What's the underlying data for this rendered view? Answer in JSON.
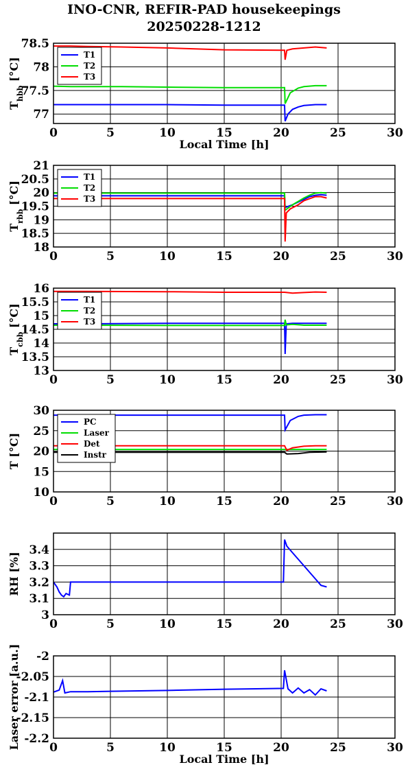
{
  "title": "INO-CNR, REFIR-PAD housekeepings",
  "subtitle": "20250228-1212",
  "colors": {
    "blue": "#0000ff",
    "green": "#00dd00",
    "red": "#ff0000",
    "black": "#000000"
  },
  "chart_data": [
    {
      "type": "line",
      "ylabel_main": "T",
      "ylabel_sub": "hbb",
      "ylabel_unit": " [°C]",
      "xlabel": "Local Time [h]",
      "xlim": [
        0,
        30
      ],
      "ylim": [
        76.8,
        78.5
      ],
      "xticks": [
        "0",
        "5",
        "10",
        "15",
        "20",
        "25",
        "30"
      ],
      "yticks": [
        "77",
        "77.5",
        "78",
        "78.5"
      ],
      "ytick_values": [
        77,
        77.5,
        78,
        78.5
      ],
      "grid": true,
      "legend_position": "top-left",
      "series": [
        {
          "name": "T1",
          "color": "#0000ff",
          "x": [
            0,
            1.5,
            3,
            6,
            10,
            15,
            20.3,
            20.35,
            20.6,
            21,
            21.5,
            22,
            23,
            24
          ],
          "y": [
            77.2,
            77.2,
            77.2,
            77.2,
            77.2,
            77.19,
            77.19,
            76.85,
            77.0,
            77.1,
            77.15,
            77.18,
            77.2,
            77.2
          ]
        },
        {
          "name": "T2",
          "color": "#00dd00",
          "x": [
            0,
            1.5,
            3,
            6,
            10,
            15,
            20.3,
            20.35,
            20.8,
            21.5,
            22,
            23,
            24
          ],
          "y": [
            77.59,
            77.58,
            77.58,
            77.58,
            77.57,
            77.56,
            77.56,
            77.22,
            77.45,
            77.55,
            77.58,
            77.6,
            77.6
          ]
        },
        {
          "name": "T3",
          "color": "#ff0000",
          "x": [
            0,
            1.5,
            3,
            6,
            10,
            15,
            20.3,
            20.35,
            20.5,
            21,
            22,
            23,
            24
          ],
          "y": [
            78.44,
            78.44,
            78.43,
            78.42,
            78.4,
            78.36,
            78.35,
            78.15,
            78.35,
            78.38,
            78.4,
            78.42,
            78.4
          ]
        }
      ]
    },
    {
      "type": "line",
      "ylabel_main": "T",
      "ylabel_sub": "rbb",
      "ylabel_unit": " [°C]",
      "xlabel": "",
      "xlim": [
        0,
        30
      ],
      "ylim": [
        18,
        21
      ],
      "xticks": [
        "0",
        "5",
        "10",
        "15",
        "20",
        "25",
        "30"
      ],
      "yticks": [
        "18",
        "18.5",
        "19",
        "19.5",
        "20",
        "20.5",
        "21"
      ],
      "ytick_values": [
        18,
        18.5,
        19,
        19.5,
        20,
        20.5,
        21
      ],
      "grid": true,
      "legend_position": "top-left",
      "series": [
        {
          "name": "T1",
          "color": "#0000ff",
          "x": [
            0,
            3,
            10,
            15,
            20.3,
            20.35,
            21,
            22,
            22.5,
            23,
            23.5,
            24
          ],
          "y": [
            19.88,
            19.88,
            19.88,
            19.88,
            19.88,
            19.45,
            19.55,
            19.75,
            19.85,
            19.9,
            19.92,
            19.9
          ]
        },
        {
          "name": "T2",
          "color": "#00dd00",
          "x": [
            0,
            3,
            10,
            15,
            20.3,
            20.35,
            21,
            22,
            22.5,
            23,
            23.5,
            24
          ],
          "y": [
            19.98,
            19.98,
            19.98,
            19.98,
            19.98,
            19.35,
            19.55,
            19.8,
            19.9,
            19.98,
            20.0,
            19.98
          ]
        },
        {
          "name": "T3",
          "color": "#ff0000",
          "x": [
            0,
            3,
            10,
            15,
            20.3,
            20.35,
            20.45,
            20.8,
            21.5,
            22,
            23,
            23.5,
            24
          ],
          "y": [
            19.78,
            19.78,
            19.78,
            19.78,
            19.78,
            18.2,
            19.25,
            19.4,
            19.55,
            19.7,
            19.85,
            19.85,
            19.8
          ]
        }
      ]
    },
    {
      "type": "line",
      "ylabel_main": "T",
      "ylabel_sub": "cbb",
      "ylabel_unit": " [°C]",
      "xlabel": "",
      "xlim": [
        0,
        30
      ],
      "ylim": [
        13,
        16
      ],
      "xticks": [
        "0",
        "5",
        "10",
        "15",
        "20",
        "25",
        "30"
      ],
      "yticks": [
        "13",
        "13.5",
        "14",
        "14.5",
        "15",
        "15.5",
        "16"
      ],
      "ytick_values": [
        13,
        13.5,
        14,
        14.5,
        15,
        15.5,
        16
      ],
      "grid": true,
      "legend_position": "top-left",
      "series": [
        {
          "name": "T1",
          "color": "#0000ff",
          "x": [
            0,
            3,
            10,
            15,
            20.3,
            20.35,
            20.45,
            21,
            22,
            24
          ],
          "y": [
            14.7,
            14.7,
            14.72,
            14.72,
            14.72,
            13.6,
            14.7,
            14.72,
            14.72,
            14.72
          ]
        },
        {
          "name": "T2",
          "color": "#00dd00",
          "x": [
            0,
            3,
            10,
            15,
            20.3,
            20.35,
            20.45,
            21,
            22,
            24
          ],
          "y": [
            14.65,
            14.65,
            14.64,
            14.64,
            14.64,
            14.85,
            14.66,
            14.68,
            14.65,
            14.65
          ]
        },
        {
          "name": "T3",
          "color": "#ff0000",
          "x": [
            0,
            3,
            10,
            15,
            20.3,
            21,
            22,
            23,
            24
          ],
          "y": [
            15.88,
            15.88,
            15.87,
            15.85,
            15.85,
            15.82,
            15.84,
            15.86,
            15.85
          ]
        }
      ]
    },
    {
      "type": "line",
      "ylabel_main": "T",
      "ylabel_sub": "",
      "ylabel_unit": " [°C]",
      "xlabel": "",
      "xlim": [
        0,
        30
      ],
      "ylim": [
        10,
        30
      ],
      "xticks": [
        "0",
        "5",
        "10",
        "15",
        "20",
        "25",
        "30"
      ],
      "yticks": [
        "10",
        "15",
        "20",
        "25",
        "30"
      ],
      "ytick_values": [
        10,
        15,
        20,
        25,
        30
      ],
      "grid": true,
      "legend_position": "top-left",
      "series": [
        {
          "name": "PC",
          "color": "#0000ff",
          "x": [
            0,
            3,
            10,
            15,
            20.3,
            20.35,
            20.8,
            21.5,
            22,
            23,
            24
          ],
          "y": [
            28.8,
            28.8,
            28.8,
            28.8,
            28.8,
            25.2,
            27.5,
            28.5,
            28.8,
            28.9,
            28.9
          ]
        },
        {
          "name": "Laser",
          "color": "#00dd00",
          "x": [
            0,
            3,
            10,
            15,
            20.3,
            21,
            22,
            24
          ],
          "y": [
            20.4,
            20.4,
            20.4,
            20.4,
            20.4,
            20.4,
            20.4,
            20.4
          ]
        },
        {
          "name": "Det",
          "color": "#ff0000",
          "x": [
            0,
            3,
            10,
            15,
            20.3,
            20.5,
            21,
            22,
            23,
            24
          ],
          "y": [
            21.3,
            21.3,
            21.3,
            21.3,
            21.3,
            20.2,
            20.8,
            21.2,
            21.3,
            21.3
          ]
        },
        {
          "name": "Instr",
          "color": "#000000",
          "x": [
            0,
            3,
            10,
            15,
            20.3,
            20.5,
            21.5,
            22.5,
            24
          ],
          "y": [
            19.7,
            19.7,
            19.7,
            19.7,
            19.7,
            19.3,
            19.4,
            19.7,
            19.8
          ]
        }
      ]
    },
    {
      "type": "line",
      "ylabel_main": "RH [%]",
      "ylabel_sub": "",
      "ylabel_unit": "",
      "xlabel": "",
      "xlim": [
        0,
        30
      ],
      "ylim": [
        3,
        3.5
      ],
      "xticks": [
        "0",
        "5",
        "10",
        "15",
        "20",
        "25",
        "30"
      ],
      "yticks": [
        "3",
        "3.1",
        "3.2",
        "3.3",
        "3.4"
      ],
      "ytick_values": [
        3,
        3.1,
        3.2,
        3.3,
        3.4
      ],
      "grid": true,
      "legend_position": "none",
      "series": [
        {
          "name": "",
          "color": "#0000ff",
          "x": [
            0,
            0.3,
            0.5,
            0.7,
            0.9,
            1.1,
            1.4,
            1.5,
            5,
            10,
            15,
            20.2,
            20.3,
            20.5,
            21,
            21.5,
            22,
            22.5,
            23,
            23.5,
            24
          ],
          "y": [
            3.2,
            3.17,
            3.14,
            3.12,
            3.11,
            3.13,
            3.12,
            3.2,
            3.2,
            3.2,
            3.2,
            3.2,
            3.46,
            3.42,
            3.38,
            3.34,
            3.3,
            3.26,
            3.22,
            3.18,
            3.17
          ]
        }
      ]
    },
    {
      "type": "line",
      "ylabel_main": "Laser error [a.u.]",
      "ylabel_sub": "",
      "ylabel_unit": "",
      "xlabel": "Local Time [h]",
      "xlim": [
        0,
        30
      ],
      "ylim": [
        -2.2,
        -2
      ],
      "xticks": [
        "0",
        "5",
        "10",
        "15",
        "20",
        "25",
        "30"
      ],
      "yticks": [
        "-2",
        "-2.05",
        "-2.1",
        "-2.15",
        "-2.2"
      ],
      "ytick_values": [
        -2,
        -2.05,
        -2.1,
        -2.15,
        -2.2
      ],
      "grid": true,
      "legend_position": "none",
      "series": [
        {
          "name": "",
          "color": "#0000ff",
          "x": [
            0,
            0.5,
            0.8,
            1.0,
            1.5,
            3,
            5,
            10,
            15,
            20.2,
            20.3,
            20.6,
            21,
            21.5,
            22,
            22.5,
            23,
            23.5,
            24
          ],
          "y": [
            -2.088,
            -2.083,
            -2.06,
            -2.09,
            -2.087,
            -2.087,
            -2.086,
            -2.084,
            -2.081,
            -2.079,
            -2.035,
            -2.08,
            -2.09,
            -2.078,
            -2.09,
            -2.082,
            -2.095,
            -2.08,
            -2.085
          ]
        }
      ]
    }
  ]
}
